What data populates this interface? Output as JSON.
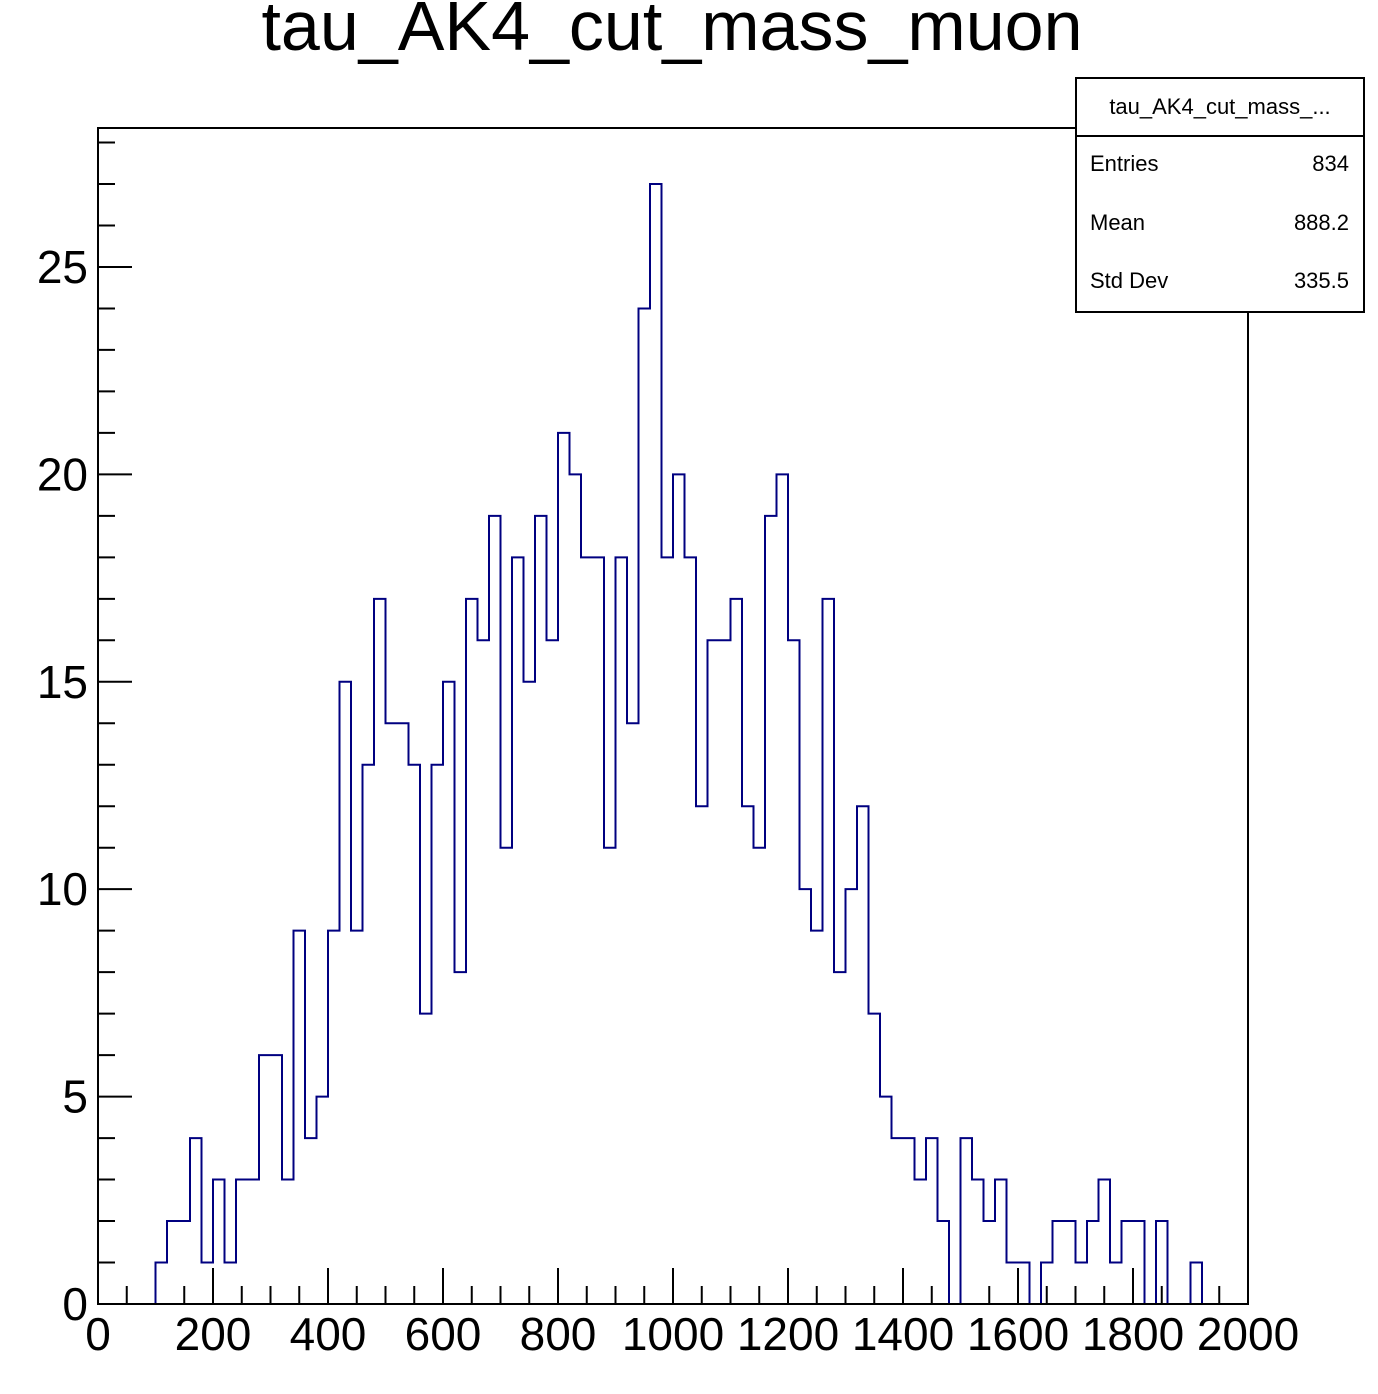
{
  "chart_data": {
    "type": "bar",
    "title": "tau_AK4_cut_mass_muon",
    "xlabel": "",
    "ylabel": "",
    "xlim": [
      0,
      2000
    ],
    "ylim": [
      0,
      28.35
    ],
    "x_ticks": [
      "0",
      "200",
      "400",
      "600",
      "800",
      "1000",
      "1200",
      "1400",
      "1600",
      "1800",
      "2000"
    ],
    "y_ticks": [
      "0",
      "5",
      "10",
      "15",
      "20",
      "25"
    ],
    "bin_width": 20,
    "bin_low_edges": [
      100,
      120,
      140,
      160,
      180,
      200,
      220,
      240,
      260,
      280,
      300,
      320,
      340,
      360,
      380,
      400,
      420,
      440,
      460,
      480,
      500,
      520,
      540,
      560,
      580,
      600,
      620,
      640,
      660,
      680,
      700,
      720,
      740,
      760,
      780,
      800,
      820,
      840,
      860,
      880,
      900,
      920,
      940,
      960,
      980,
      1000,
      1020,
      1040,
      1060,
      1080,
      1100,
      1120,
      1140,
      1160,
      1180,
      1200,
      1220,
      1240,
      1260,
      1280,
      1300,
      1320,
      1340,
      1360,
      1380,
      1400,
      1420,
      1440,
      1460,
      1480,
      1500,
      1520,
      1540,
      1560,
      1580,
      1600,
      1620,
      1640,
      1660,
      1680,
      1700,
      1720,
      1740,
      1760,
      1780,
      1800,
      1820,
      1840,
      1860,
      1880,
      1900
    ],
    "counts": [
      1,
      2,
      2,
      4,
      1,
      3,
      1,
      3,
      3,
      6,
      6,
      3,
      9,
      4,
      5,
      9,
      15,
      9,
      13,
      17,
      14,
      14,
      13,
      7,
      13,
      15,
      8,
      17,
      16,
      19,
      11,
      18,
      15,
      19,
      16,
      21,
      20,
      18,
      18,
      11,
      18,
      14,
      24,
      27,
      18,
      20,
      18,
      12,
      16,
      16,
      17,
      12,
      11,
      19,
      20,
      16,
      10,
      9,
      17,
      8,
      10,
      12,
      7,
      5,
      4,
      4,
      3,
      4,
      2,
      0,
      4,
      3,
      2,
      3,
      1,
      1,
      0,
      1,
      2,
      2,
      1,
      2,
      3,
      1,
      2,
      2,
      0,
      2,
      0,
      0,
      1
    ],
    "line_color": "#000080",
    "stats_box": {
      "name": "tau_AK4_cut_mass_...",
      "rows": [
        {
          "label": "Entries",
          "value": "834"
        },
        {
          "label": "Mean",
          "value": "888.2"
        },
        {
          "label": "Std Dev",
          "value": "335.5"
        }
      ]
    }
  }
}
